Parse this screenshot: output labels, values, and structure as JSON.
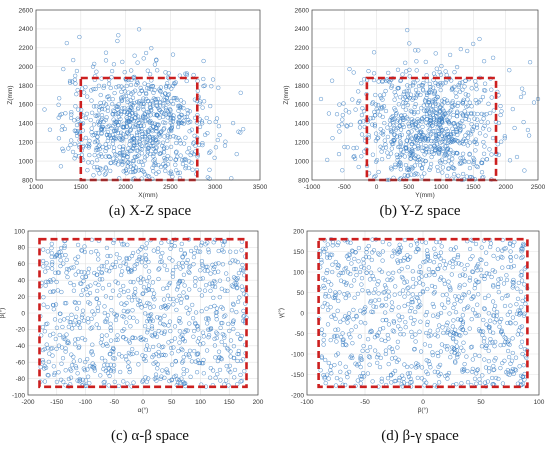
{
  "chart_data": [
    {
      "type": "scatter",
      "caption": "(a) X-Z space",
      "xlabel": "X(mm)",
      "ylabel": "Z(mm)",
      "xlim": [
        1000,
        3500
      ],
      "ylim": [
        800,
        2600
      ],
      "xticks": [
        "1000",
        "1500",
        "2000",
        "2500",
        "3000",
        "3500"
      ],
      "yticks": [
        "800",
        "1000",
        "1200",
        "1400",
        "1600",
        "1800",
        "2000",
        "2200",
        "2400",
        "2600"
      ],
      "workspace_box": {
        "x": [
          1500,
          2800
        ],
        "y": [
          800,
          1880
        ]
      },
      "series": [
        {
          "points_cloud": {
            "center": [
              2150,
              1350
            ],
            "spread": [
              420,
              330
            ],
            "count": 900
          }
        }
      ],
      "marker_color": "#3b7fc4",
      "box_color": "#cc1f1f",
      "grid": true
    },
    {
      "type": "scatter",
      "caption": "(b) Y-Z space",
      "xlabel": "Y(mm)",
      "ylabel": "Z(mm)",
      "xlim": [
        -1000,
        2500
      ],
      "ylim": [
        800,
        2600
      ],
      "xticks": [
        "-1000",
        "-500",
        "0",
        "500",
        "1000",
        "1500",
        "2000",
        "2500"
      ],
      "yticks": [
        "800",
        "1000",
        "1200",
        "1400",
        "1600",
        "1800",
        "2000",
        "2200",
        "2400",
        "2600"
      ],
      "workspace_box": {
        "x": [
          -150,
          1850
        ],
        "y": [
          800,
          1880
        ]
      },
      "series": [
        {
          "points_cloud": {
            "center": [
              750,
              1350
            ],
            "spread": [
              600,
              330
            ],
            "count": 900
          }
        }
      ],
      "marker_color": "#3b7fc4",
      "box_color": "#cc1f1f",
      "grid": true
    },
    {
      "type": "scatter",
      "caption": "(c) α-β space",
      "xlabel": "α(°)",
      "ylabel": "β(°)",
      "xlim": [
        -200,
        200
      ],
      "ylim": [
        -100,
        100
      ],
      "xticks": [
        "-200",
        "-150",
        "-100",
        "-50",
        "0",
        "50",
        "100",
        "150",
        "200"
      ],
      "yticks": [
        "-100",
        "-80",
        "-60",
        "-40",
        "-20",
        "0",
        "20",
        "40",
        "60",
        "80",
        "100"
      ],
      "workspace_box": {
        "x": [
          -180,
          180
        ],
        "y": [
          -90,
          90
        ]
      },
      "series": [
        {
          "points_uniform": {
            "x": [
              -180,
              180
            ],
            "y": [
              -90,
              90
            ],
            "count": 900
          }
        }
      ],
      "marker_color": "#3b7fc4",
      "box_color": "#cc1f1f",
      "grid": true
    },
    {
      "type": "scatter",
      "caption": "(d) β-γ space",
      "xlabel": "β(°)",
      "ylabel": "γ(°)",
      "xlim": [
        -100,
        100
      ],
      "ylim": [
        -200,
        200
      ],
      "xticks": [
        "-100",
        "-50",
        "0",
        "50",
        "100"
      ],
      "yticks": [
        "-200",
        "-150",
        "-100",
        "-50",
        "0",
        "50",
        "100",
        "150",
        "200"
      ],
      "workspace_box": {
        "x": [
          -90,
          90
        ],
        "y": [
          -180,
          180
        ]
      },
      "series": [
        {
          "points_uniform": {
            "x": [
              -90,
              90
            ],
            "y": [
              -180,
              180
            ],
            "count": 900
          }
        }
      ],
      "marker_color": "#3b7fc4",
      "box_color": "#cc1f1f",
      "grid": true
    }
  ]
}
